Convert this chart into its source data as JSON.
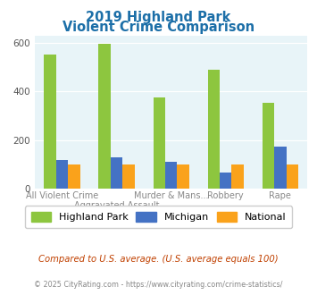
{
  "title_line1": "2019 Highland Park",
  "title_line2": "Violent Crime Comparison",
  "highland_park": [
    550,
    597,
    375,
    490,
    355
  ],
  "michigan": [
    120,
    130,
    112,
    68,
    175
  ],
  "national": [
    100,
    100,
    100,
    100,
    100
  ],
  "hp_color": "#8dc63f",
  "mi_color": "#4472c4",
  "nat_color": "#faa21b",
  "bg_color": "#e8f4f8",
  "ylim_max": 630,
  "yticks": [
    0,
    200,
    400,
    600
  ],
  "title_color": "#1c6fa8",
  "footnote1": "Compared to U.S. average. (U.S. average equals 100)",
  "footnote2": "© 2025 CityRating.com - https://www.cityrating.com/crime-statistics/",
  "footnote1_color": "#c04000",
  "footnote2_color": "#888888",
  "bottom_labels": [
    "All Violent Crime",
    "",
    "Murder & Mans...",
    "Robbery",
    "Rape"
  ],
  "top_labels": [
    "",
    "Aggravated Assault",
    "",
    "",
    ""
  ],
  "bar_width": 0.22,
  "legend_labels": [
    "Highland Park",
    "Michigan",
    "National"
  ]
}
